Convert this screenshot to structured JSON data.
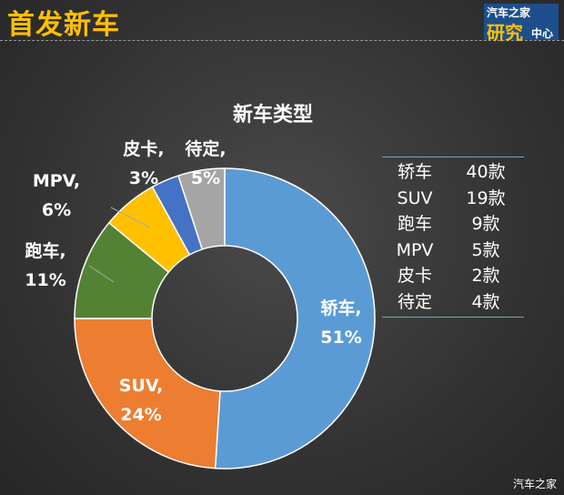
{
  "header": {
    "title": "首发新车",
    "logo": "汽车之家研究中心"
  },
  "chart_data": {
    "type": "pie",
    "donut": true,
    "title": "新车类型",
    "categories": [
      "轿车",
      "SUV",
      "跑车",
      "MPV",
      "皮卡",
      "待定"
    ],
    "values": [
      51,
      24,
      11,
      6,
      3,
      5
    ],
    "labels": [
      "51%",
      "24%",
      "11%",
      "6%",
      "3%",
      "5%"
    ],
    "colors": [
      "#5b9bd5",
      "#ed7d31",
      "#548235",
      "#ffc000",
      "#4472c4",
      "#a5a5a5"
    ]
  },
  "table": [
    {
      "name": "轿车",
      "count": "40款"
    },
    {
      "name": "SUV",
      "count": "19款"
    },
    {
      "name": "跑车",
      "count": "9款"
    },
    {
      "name": "MPV",
      "count": "5款"
    },
    {
      "name": "皮卡",
      "count": "2款"
    },
    {
      "name": "待定",
      "count": "4款"
    }
  ],
  "footer": "汽车之家"
}
